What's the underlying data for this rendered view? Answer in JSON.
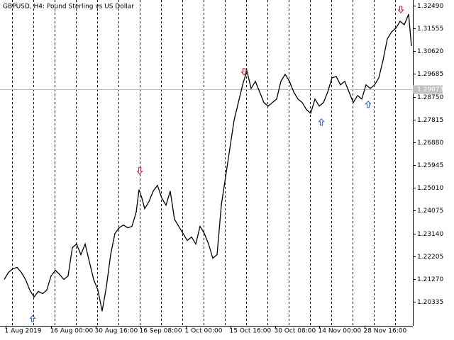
{
  "chart_data": {
    "type": "line",
    "title": "GBPUSD, H4:  Pound Sterling vs US Dollar",
    "x": [
      6,
      12,
      18,
      24,
      30,
      36,
      42,
      48,
      54,
      60,
      66,
      72,
      78,
      84,
      90,
      96,
      102,
      108,
      114,
      120,
      126,
      132,
      138,
      144,
      150,
      156,
      162,
      168,
      174,
      180,
      186,
      192,
      196,
      200,
      204,
      210,
      216,
      222,
      228,
      234,
      240,
      246,
      252,
      258,
      264,
      270,
      276,
      282,
      288,
      294,
      300,
      306,
      312,
      318,
      324,
      330,
      336,
      342,
      348,
      354,
      360,
      366,
      372,
      378,
      384,
      390,
      396,
      402,
      408,
      414,
      420,
      426,
      432,
      438,
      444,
      450,
      456,
      462,
      468,
      474,
      480,
      486,
      492,
      498,
      504,
      510,
      516,
      522,
      528,
      534,
      540,
      546,
      552,
      558,
      564,
      570,
      576,
      580
    ],
    "series": [
      {
        "color": "#000000",
        "values": [
          1.21253,
          1.21543,
          1.21688,
          1.21746,
          1.21543,
          1.21253,
          1.20817,
          1.20527,
          1.20759,
          1.20672,
          1.20817,
          1.21398,
          1.2163,
          1.21456,
          1.21253,
          1.21398,
          1.22559,
          1.22705,
          1.22269,
          1.22705,
          1.21979,
          1.21253,
          1.20817,
          1.19946,
          1.20962,
          1.22269,
          1.2314,
          1.23372,
          1.23489,
          1.23372,
          1.2343,
          1.24011,
          1.2494,
          1.24592,
          1.24156,
          1.24447,
          1.24882,
          1.25115,
          1.24592,
          1.24302,
          1.24882,
          1.23721,
          1.2343,
          1.2314,
          1.2285,
          1.22995,
          1.22705,
          1.2343,
          1.2314,
          1.22705,
          1.22124,
          1.22269,
          1.24302,
          1.25463,
          1.26624,
          1.27786,
          1.28512,
          1.29238,
          1.29818,
          1.29092,
          1.29383,
          1.28947,
          1.28512,
          1.28367,
          1.28512,
          1.28657,
          1.29383,
          1.29673,
          1.29383,
          1.28947,
          1.28657,
          1.28512,
          1.28221,
          1.28076,
          1.28657,
          1.28367,
          1.28512,
          1.28947,
          1.29528,
          1.29586,
          1.29238,
          1.29383,
          1.28947,
          1.28512,
          1.28802,
          1.28657,
          1.29238,
          1.29092,
          1.29238,
          1.29528,
          1.30254,
          1.31125,
          1.31415,
          1.31561,
          1.31851,
          1.31706,
          1.32141,
          1.30835
        ]
      }
    ],
    "sell_signals": {
      "color": "#e0102a",
      "x": [
        197,
        344,
        565
      ],
      "values": [
        1.25695,
        1.2976,
        1.32315
      ]
    },
    "buy_signals": {
      "color": "#3a5fd8",
      "x": [
        46,
        453,
        519
      ],
      "values": [
        1.19656,
        1.27728,
        1.28454
      ]
    },
    "current_price": {
      "value": 1.29073,
      "label": "1.29073"
    },
    "xlim": [
      0,
      582
    ],
    "ylim": [
      1.19348,
      1.32722
    ],
    "xticks": [
      {
        "value": 8,
        "label": "1 Aug 2019"
      },
      {
        "value": 72,
        "label": "16 Aug 00:00"
      },
      {
        "value": 135,
        "label": "30 Aug 16:00"
      },
      {
        "value": 198,
        "label": "16 Sep 08:00"
      },
      {
        "value": 262,
        "label": "1 Oct 00:00"
      },
      {
        "value": 325,
        "label": "15 Oct 16:00"
      },
      {
        "value": 388,
        "label": "30 Oct 08:00"
      },
      {
        "value": 450,
        "label": "14 Nov 00:00"
      },
      {
        "value": 514,
        "label": "28 Nov 16:00"
      }
    ],
    "xgrid": [
      17,
      47,
      77,
      107,
      137,
      167,
      197,
      227,
      257,
      287,
      317,
      347,
      377,
      407,
      437,
      467,
      497,
      527,
      557
    ],
    "yticks": [
      {
        "value": 1.3249,
        "label": "1.32490"
      },
      1.31555,
      {
        "value": 1.3062,
        "label": "1.30620"
      },
      1.29685,
      {
        "value": 1.2875,
        "label": "1.28750"
      },
      1.27815,
      {
        "value": 1.2688,
        "label": "1.26880"
      },
      1.25945,
      {
        "value": 1.2501,
        "label": "1.25010"
      },
      1.24075,
      {
        "value": 1.2314,
        "label": "1.23140"
      },
      1.22205,
      {
        "value": 1.2127,
        "label": "1.21270"
      },
      1.20335
    ],
    "grid": true
  }
}
